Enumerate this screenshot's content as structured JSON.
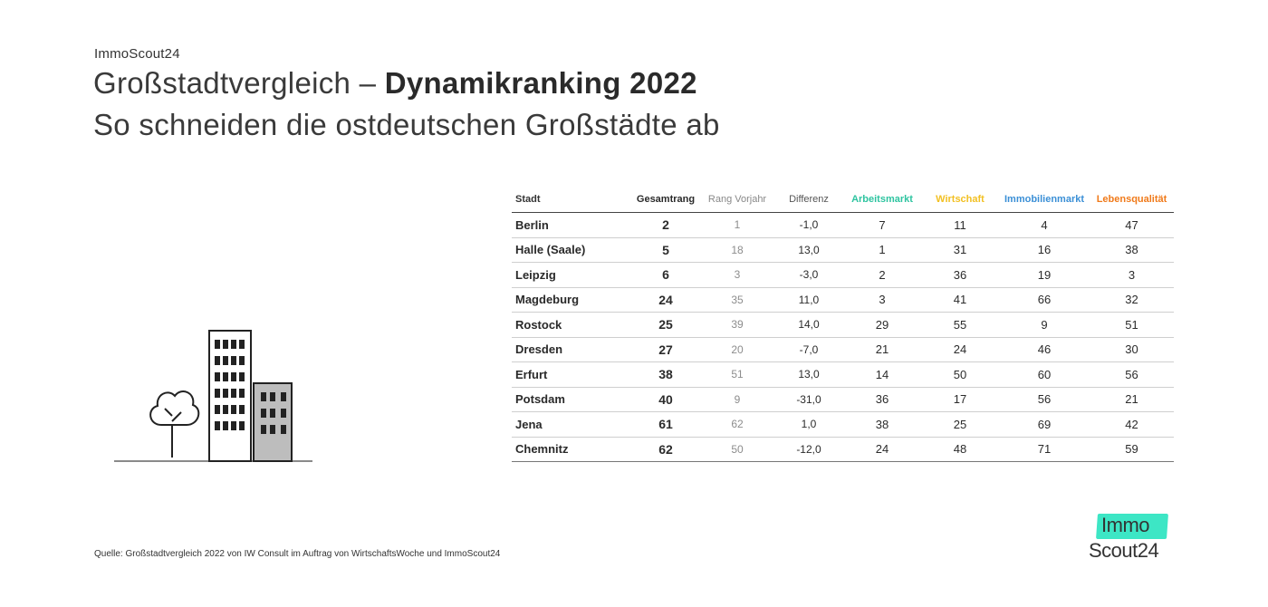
{
  "brand": "ImmoScout24",
  "title_regular": "Großstadtvergleich – ",
  "title_bold": "Dynamikranking 2022",
  "subtitle": "So schneiden die ostdeutschen Großstädte ab",
  "colors": {
    "arbeitsmarkt": "#2ec4a0",
    "wirtschaft": "#f2c023",
    "immobilienmarkt": "#3a8fd6",
    "lebensqualitaet": "#f07a1a",
    "logo_accent": "#3de6c5"
  },
  "table": {
    "headers": {
      "stadt": "Stadt",
      "gesamtrang": "Gesamtrang",
      "rang_vorjahr": "Rang Vorjahr",
      "differenz": "Differenz",
      "arbeitsmarkt": "Arbeitsmarkt",
      "wirtschaft": "Wirtschaft",
      "immobilienmarkt": "Immobilienmarkt",
      "lebensqualitaet": "Lebensqualität"
    },
    "rows": [
      {
        "stadt": "Berlin",
        "gesamtrang": "2",
        "rang_vorjahr": "1",
        "differenz": "-1,0",
        "arbeitsmarkt": "7",
        "wirtschaft": "11",
        "immobilienmarkt": "4",
        "lebensqualitaet": "47"
      },
      {
        "stadt": "Halle (Saale)",
        "gesamtrang": "5",
        "rang_vorjahr": "18",
        "differenz": "13,0",
        "arbeitsmarkt": "1",
        "wirtschaft": "31",
        "immobilienmarkt": "16",
        "lebensqualitaet": "38"
      },
      {
        "stadt": "Leipzig",
        "gesamtrang": "6",
        "rang_vorjahr": "3",
        "differenz": "-3,0",
        "arbeitsmarkt": "2",
        "wirtschaft": "36",
        "immobilienmarkt": "19",
        "lebensqualitaet": "3"
      },
      {
        "stadt": "Magdeburg",
        "gesamtrang": "24",
        "rang_vorjahr": "35",
        "differenz": "11,0",
        "arbeitsmarkt": "3",
        "wirtschaft": "41",
        "immobilienmarkt": "66",
        "lebensqualitaet": "32"
      },
      {
        "stadt": "Rostock",
        "gesamtrang": "25",
        "rang_vorjahr": "39",
        "differenz": "14,0",
        "arbeitsmarkt": "29",
        "wirtschaft": "55",
        "immobilienmarkt": "9",
        "lebensqualitaet": "51"
      },
      {
        "stadt": "Dresden",
        "gesamtrang": "27",
        "rang_vorjahr": "20",
        "differenz": "-7,0",
        "arbeitsmarkt": "21",
        "wirtschaft": "24",
        "immobilienmarkt": "46",
        "lebensqualitaet": "30"
      },
      {
        "stadt": "Erfurt",
        "gesamtrang": "38",
        "rang_vorjahr": "51",
        "differenz": "13,0",
        "arbeitsmarkt": "14",
        "wirtschaft": "50",
        "immobilienmarkt": "60",
        "lebensqualitaet": "56"
      },
      {
        "stadt": "Potsdam",
        "gesamtrang": "40",
        "rang_vorjahr": "9",
        "differenz": "-31,0",
        "arbeitsmarkt": "36",
        "wirtschaft": "17",
        "immobilienmarkt": "56",
        "lebensqualitaet": "21"
      },
      {
        "stadt": "Jena",
        "gesamtrang": "61",
        "rang_vorjahr": "62",
        "differenz": "1,0",
        "arbeitsmarkt": "38",
        "wirtschaft": "25",
        "immobilienmarkt": "69",
        "lebensqualitaet": "42"
      },
      {
        "stadt": "Chemnitz",
        "gesamtrang": "62",
        "rang_vorjahr": "50",
        "differenz": "-12,0",
        "arbeitsmarkt": "24",
        "wirtschaft": "48",
        "immobilienmarkt": "71",
        "lebensqualitaet": "59"
      }
    ]
  },
  "source": "Quelle: Großstadtvergleich 2022 von IW Consult im Auftrag von WirtschaftsWoche und ImmoScout24",
  "logo": {
    "top": "Immo",
    "bottom": "Scout24"
  },
  "illustration_icons": [
    "tree-icon",
    "tall-building-icon",
    "small-building-icon"
  ]
}
